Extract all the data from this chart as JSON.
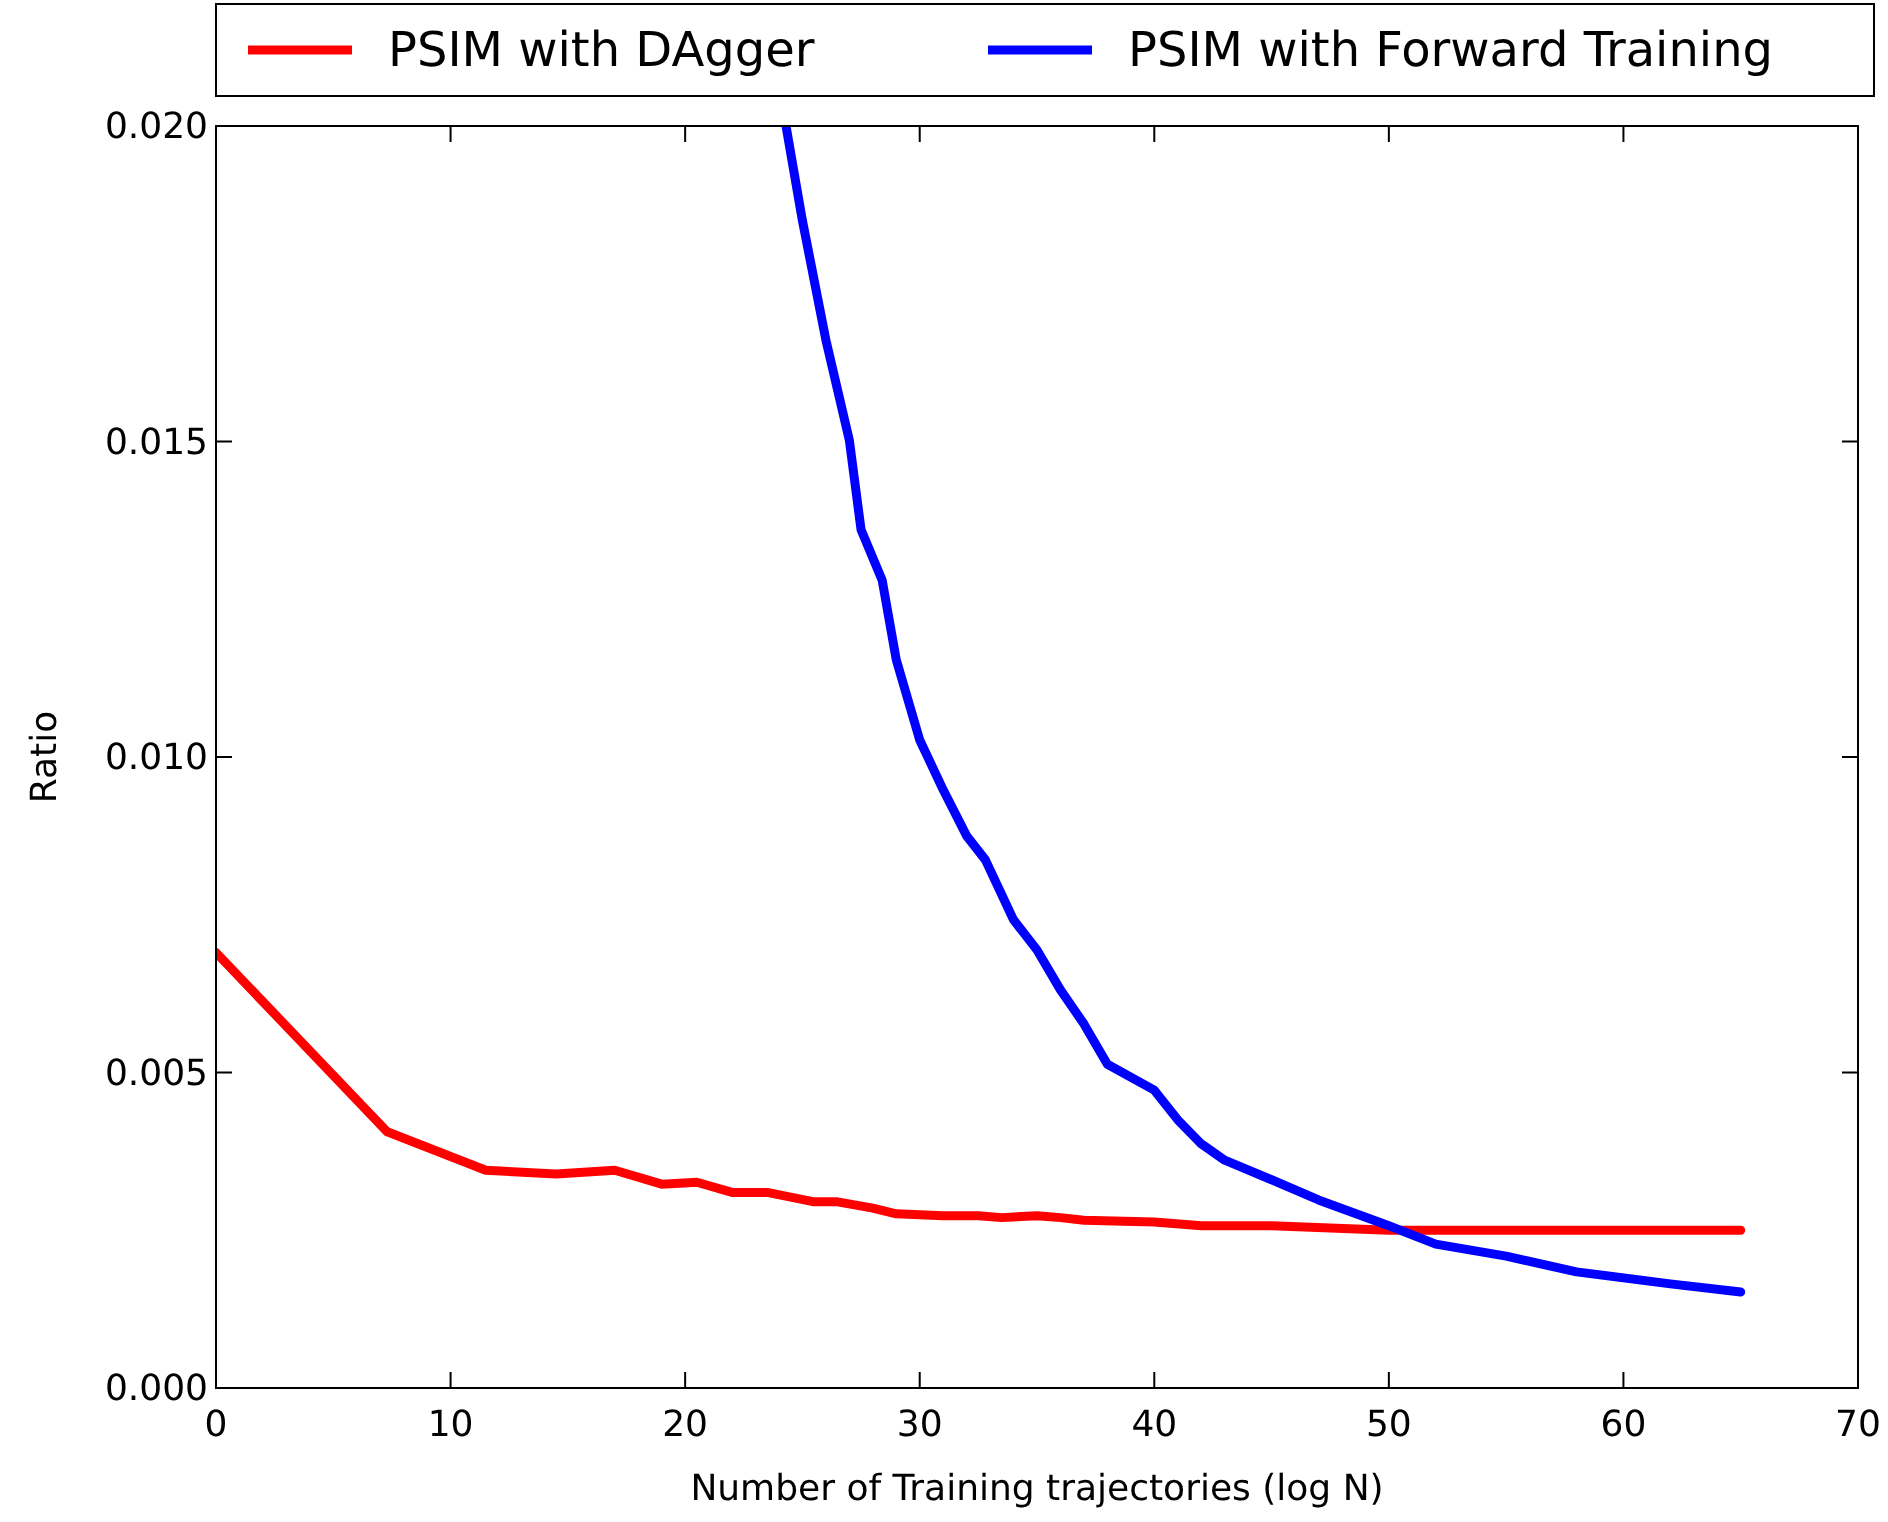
{
  "chart_data": {
    "type": "line",
    "xlabel": "Number of Training trajectories (log N)",
    "ylabel": "Ratio",
    "xlim": [
      0,
      70
    ],
    "xticks": [
      0,
      10,
      20,
      30,
      40,
      50,
      60,
      70
    ],
    "ylim": [
      0,
      0.02
    ],
    "yticks": [
      {
        "value": 0,
        "label": "0.000"
      },
      {
        "value": 0.005,
        "label": "0.005"
      },
      {
        "value": 0.01,
        "label": "0.010"
      },
      {
        "value": 0.015,
        "label": "0.015"
      },
      {
        "value": 0.02,
        "label": "0.020"
      }
    ],
    "legend": "top",
    "grid": false,
    "line_style": "solid",
    "series": [
      {
        "name": "PSIM with DAgger",
        "color": "#ff0000",
        "x": [
          0,
          7.3,
          11.5,
          14.5,
          17,
          19,
          20.5,
          22,
          23.5,
          25.5,
          26.5,
          28,
          29,
          31,
          32.5,
          33.5,
          35,
          36,
          37,
          40,
          42,
          45,
          50,
          55,
          60,
          65
        ],
        "values": [
          0.0069,
          0.00406,
          0.00345,
          0.00339,
          0.00345,
          0.00323,
          0.00326,
          0.0031,
          0.0031,
          0.00295,
          0.00295,
          0.00285,
          0.00276,
          0.00273,
          0.00273,
          0.0027,
          0.00273,
          0.0027,
          0.00266,
          0.00263,
          0.00257,
          0.00257,
          0.0025,
          0.0025,
          0.0025,
          0.0025
        ]
      },
      {
        "name": "PSIM with Forward Training",
        "color": "#0000ff",
        "x": [
          24.3,
          25,
          26,
          27,
          27.5,
          28.4,
          29,
          30,
          31,
          32,
          32.8,
          34,
          35,
          36,
          37,
          38,
          40,
          41,
          42,
          43,
          45,
          47,
          50,
          52,
          55,
          58,
          62,
          65
        ],
        "values": [
          0.02,
          0.0185,
          0.01661,
          0.01502,
          0.0136,
          0.0128,
          0.01154,
          0.01027,
          0.00948,
          0.00875,
          0.00837,
          0.00742,
          0.00694,
          0.00631,
          0.00577,
          0.00513,
          0.00472,
          0.00425,
          0.00387,
          0.00361,
          0.0033,
          0.00298,
          0.00257,
          0.00228,
          0.00209,
          0.00184,
          0.00165,
          0.00152
        ]
      }
    ]
  }
}
